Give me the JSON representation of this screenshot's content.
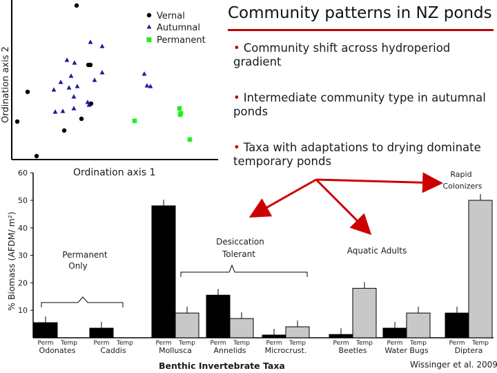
{
  "slide": {
    "title": "Community patterns in NZ ponds",
    "bullets": [
      "Community shift across hydroperiod gradient",
      "Intermediate community type in autumnal ponds",
      "Taxa with adaptations to drying dominate temporary ponds"
    ],
    "citation": "Wissinger et al. 2009",
    "colors": {
      "accent": "#c00000",
      "arrow": "#cc0000"
    }
  },
  "chart_data": [
    {
      "type": "scatter",
      "xlabel": "Ordination axis 1",
      "ylabel": "Ordination axis 2",
      "legend_placement": "top-right",
      "series": [
        {
          "name": "Vernal",
          "marker": "circle",
          "color": "#000000",
          "points": [
            [
              111,
              8
            ],
            [
              128,
              94
            ],
            [
              131,
              94
            ],
            [
              40,
              133
            ],
            [
              132,
              150
            ],
            [
              25,
              176
            ],
            [
              118,
              172
            ],
            [
              93,
              189
            ],
            [
              53,
              226
            ]
          ]
        },
        {
          "name": "Autumnal",
          "marker": "triangle",
          "color": "#1a1aa0",
          "points": [
            [
              131,
              61
            ],
            [
              148,
              67
            ],
            [
              97,
              87
            ],
            [
              108,
              91
            ],
            [
              148,
              105
            ],
            [
              103,
              110
            ],
            [
              88,
              119
            ],
            [
              78,
              130
            ],
            [
              100,
              127
            ],
            [
              112,
              125
            ],
            [
              209,
              107
            ],
            [
              213,
              124
            ],
            [
              218,
              125
            ],
            [
              137,
              116
            ],
            [
              107,
              140
            ],
            [
              80,
              162
            ],
            [
              91,
              161
            ],
            [
              127,
              148
            ],
            [
              129,
              152
            ],
            [
              107,
              157
            ]
          ]
        },
        {
          "name": "Permanent",
          "marker": "square",
          "color": "#22ee22",
          "points": [
            [
              260,
              157
            ],
            [
              262,
              164
            ],
            [
              261,
              166
            ],
            [
              195,
              175
            ],
            [
              275,
              202
            ]
          ]
        }
      ]
    },
    {
      "type": "bar",
      "ylabel": "% Biomass (AFDM/ m²)",
      "xlabel": "Benthic Invertebrate Taxa",
      "ylim": [
        0,
        60
      ],
      "yticks": [
        10,
        20,
        30,
        40,
        50,
        60
      ],
      "bar_labels": [
        "Perm",
        "Temp"
      ],
      "categories": [
        "Odonates",
        "Caddis",
        "Mollusca",
        "Annelids",
        "Microcrust.",
        "Beetles",
        "Water Bugs",
        "Diptera"
      ],
      "series": [
        {
          "name": "Perm",
          "color": "#000000",
          "values": [
            5.5,
            3.5,
            48,
            15.5,
            1,
            1.2,
            3.5,
            9
          ]
        },
        {
          "name": "Temp",
          "color": "#c8c8c8",
          "values": [
            0,
            0,
            9,
            7,
            4,
            18,
            9,
            50
          ]
        }
      ],
      "annotations": {
        "permanent_only": "Permanent Only",
        "desiccation_tolerant": "Desiccation Tolerant",
        "aquatic_adults": "Aquatic Adults",
        "rapid_colonizers": "Rapid Colonizers"
      }
    }
  ]
}
